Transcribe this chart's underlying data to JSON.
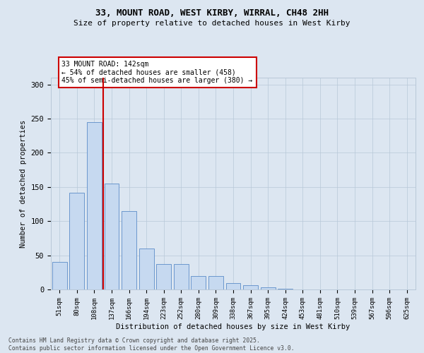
{
  "title1": "33, MOUNT ROAD, WEST KIRBY, WIRRAL, CH48 2HH",
  "title2": "Size of property relative to detached houses in West Kirby",
  "xlabel": "Distribution of detached houses by size in West Kirby",
  "ylabel": "Number of detached properties",
  "categories": [
    "51sqm",
    "80sqm",
    "108sqm",
    "137sqm",
    "166sqm",
    "194sqm",
    "223sqm",
    "252sqm",
    "280sqm",
    "309sqm",
    "338sqm",
    "367sqm",
    "395sqm",
    "424sqm",
    "453sqm",
    "481sqm",
    "510sqm",
    "539sqm",
    "567sqm",
    "596sqm",
    "625sqm"
  ],
  "values": [
    40,
    142,
    245,
    155,
    115,
    60,
    37,
    37,
    20,
    20,
    9,
    6,
    3,
    1,
    0,
    0,
    0,
    0,
    0,
    0,
    0
  ],
  "bar_color": "#c6d9f0",
  "bar_edge_color": "#5b8cc8",
  "grid_color": "#b8c8d8",
  "background_color": "#dce6f1",
  "red_line_color": "#cc0000",
  "red_line_index": 2.5,
  "annotation_text": "33 MOUNT ROAD: 142sqm\n← 54% of detached houses are smaller (458)\n45% of semi-detached houses are larger (380) →",
  "annotation_box_color": "#ffffff",
  "annotation_border_color": "#cc0000",
  "footer_text": "Contains HM Land Registry data © Crown copyright and database right 2025.\nContains public sector information licensed under the Open Government Licence v3.0.",
  "ylim": [
    0,
    310
  ],
  "yticks": [
    0,
    50,
    100,
    150,
    200,
    250,
    300
  ]
}
